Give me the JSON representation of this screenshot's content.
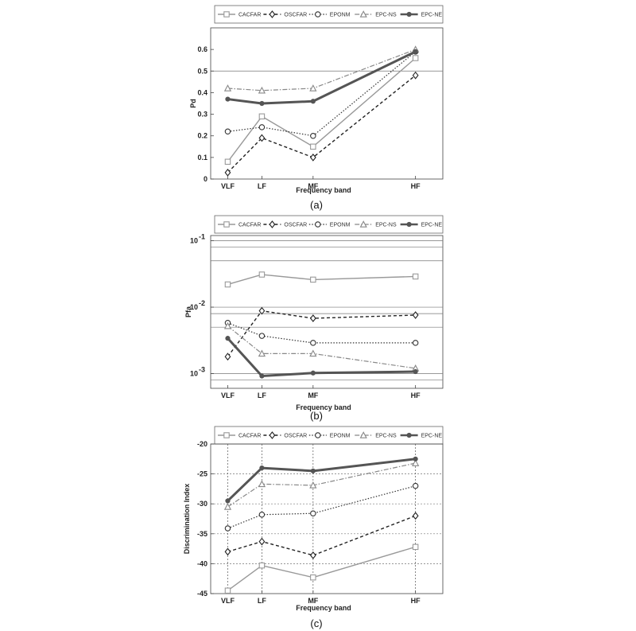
{
  "legend": [
    {
      "name": "CACFAR",
      "color": "#999999",
      "dash": "",
      "width": 1.4,
      "marker": "square"
    },
    {
      "name": "OSCFAR",
      "color": "#222222",
      "dash": "4,3",
      "width": 1.4,
      "marker": "diamond"
    },
    {
      "name": "EPONM",
      "color": "#333333",
      "dash": "1.5,2",
      "width": 1.2,
      "marker": "circle"
    },
    {
      "name": "EPC-NS",
      "color": "#888888",
      "dash": "6,2,1.5,2",
      "width": 1.2,
      "marker": "triangle"
    },
    {
      "name": "EPC-NE",
      "color": "#555555",
      "dash": "",
      "width": 3.0,
      "marker": "dot"
    }
  ],
  "chart_data": [
    {
      "type": "line",
      "caption": "(a)",
      "xlabel": "Frequency band",
      "ylabel": "Pd",
      "x_positions": [
        1,
        2,
        3.5,
        6.5
      ],
      "categories": [
        "VLF",
        "LF",
        "MF",
        "HF"
      ],
      "xlim": [
        0.5,
        7.3
      ],
      "ylim": [
        0,
        0.7
      ],
      "yscale": "linear",
      "yticks": [
        0,
        0.1,
        0.2,
        0.3,
        0.4,
        0.5,
        0.6
      ],
      "ytick_labels": [
        "0",
        "0.1",
        "0.2",
        "0.3",
        "0.4",
        "0.5",
        "0.6"
      ],
      "hgrid": [
        0.5
      ],
      "vgrid": [],
      "series": [
        {
          "name": "CACFAR",
          "values": [
            0.08,
            0.29,
            0.15,
            0.56
          ]
        },
        {
          "name": "OSCFAR",
          "values": [
            0.03,
            0.19,
            0.1,
            0.48
          ]
        },
        {
          "name": "EPONM",
          "values": [
            0.22,
            0.24,
            0.2,
            0.59
          ]
        },
        {
          "name": "EPC-NS",
          "values": [
            0.42,
            0.41,
            0.42,
            0.6
          ]
        },
        {
          "name": "EPC-NE",
          "values": [
            0.37,
            0.35,
            0.36,
            0.59
          ]
        }
      ]
    },
    {
      "type": "line",
      "caption": "(b)",
      "xlabel": "Frequency band",
      "ylabel": "Pfa",
      "x_positions": [
        1,
        2,
        3.5,
        6.5
      ],
      "categories": [
        "VLF",
        "LF",
        "MF",
        "HF"
      ],
      "xlim": [
        0.5,
        7.3
      ],
      "ylim": [
        0.0006,
        0.12
      ],
      "yscale": "log",
      "yticks": [
        0.1,
        0.01,
        0.001
      ],
      "ytick_base": "10",
      "ytick_exp": [
        "-1",
        "-2",
        "-3"
      ],
      "hgrid": [
        0.1,
        0.08,
        0.05,
        0.01,
        0.008,
        0.005,
        0.001,
        0.0008
      ],
      "vgrid": [],
      "series": [
        {
          "name": "CACFAR",
          "values": [
            0.022,
            0.031,
            0.026,
            0.029
          ]
        },
        {
          "name": "OSCFAR",
          "values": [
            0.0018,
            0.0088,
            0.0068,
            0.0076
          ]
        },
        {
          "name": "EPONM",
          "values": [
            0.0058,
            0.0037,
            0.0029,
            0.0029
          ]
        },
        {
          "name": "EPC-NS",
          "values": [
            0.0052,
            0.002,
            0.002,
            0.0012
          ]
        },
        {
          "name": "EPC-NE",
          "values": [
            0.0034,
            0.00092,
            0.00102,
            0.00107
          ]
        }
      ]
    },
    {
      "type": "line",
      "caption": "(c)",
      "xlabel": "Frequency band",
      "ylabel": "Discrimination Index",
      "x_positions": [
        1,
        2,
        3.5,
        6.5
      ],
      "categories": [
        "VLF",
        "LF",
        "MF",
        "HF"
      ],
      "xlim": [
        0.5,
        7.3
      ],
      "ylim": [
        -45,
        -20
      ],
      "yscale": "linear",
      "yticks": [
        -45,
        -40,
        -35,
        -30,
        -25,
        -20
      ],
      "ytick_labels": [
        "-45",
        "-40",
        "-35",
        "-30",
        "-25",
        "-20"
      ],
      "hgrid": [
        -40,
        -35,
        -30,
        -25
      ],
      "vgrid": [
        1,
        2,
        3.5,
        6.5
      ],
      "series": [
        {
          "name": "CACFAR",
          "values": [
            -44.5,
            -40.3,
            -42.3,
            -37.2
          ]
        },
        {
          "name": "OSCFAR",
          "values": [
            -38,
            -36.3,
            -38.6,
            -32
          ]
        },
        {
          "name": "EPONM",
          "values": [
            -34.1,
            -31.8,
            -31.6,
            -27
          ]
        },
        {
          "name": "EPC-NS",
          "values": [
            -30.5,
            -26.7,
            -26.9,
            -23.2
          ]
        },
        {
          "name": "EPC-NE",
          "values": [
            -29.5,
            -24,
            -24.5,
            -22.5
          ]
        }
      ]
    }
  ]
}
